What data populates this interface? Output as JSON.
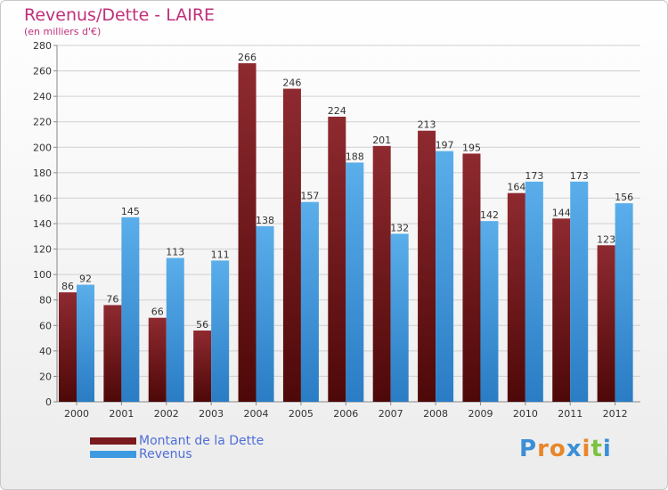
{
  "chart_data": {
    "type": "bar",
    "title": "Revenus/Dette - LAIRE",
    "subtitle": "(en milliers d'€)",
    "categories": [
      "2000",
      "2001",
      "2002",
      "2003",
      "2004",
      "2005",
      "2006",
      "2007",
      "2008",
      "2009",
      "2010",
      "2011",
      "2012"
    ],
    "series": [
      {
        "name": "Montant de la Dette",
        "color": "#7a1a1e",
        "values": [
          86,
          76,
          66,
          56,
          266,
          246,
          224,
          201,
          213,
          195,
          164,
          144,
          123
        ]
      },
      {
        "name": "Revenus",
        "color": "#3e9ae0",
        "values": [
          92,
          145,
          113,
          111,
          138,
          157,
          188,
          132,
          197,
          142,
          173,
          173,
          156
        ]
      }
    ],
    "ylim": [
      0,
      280
    ],
    "ytick_step": 20,
    "grid": true,
    "legend_position": "bottom-left"
  },
  "logo": {
    "letters": [
      "P",
      "r",
      "o",
      "x",
      "i",
      "t",
      "i"
    ],
    "colors": [
      "#3a8fd8",
      "#e8862a",
      "#e8862a",
      "#3a8fd8",
      "#e8862a",
      "#7cc242",
      "#3a8fd8"
    ]
  }
}
